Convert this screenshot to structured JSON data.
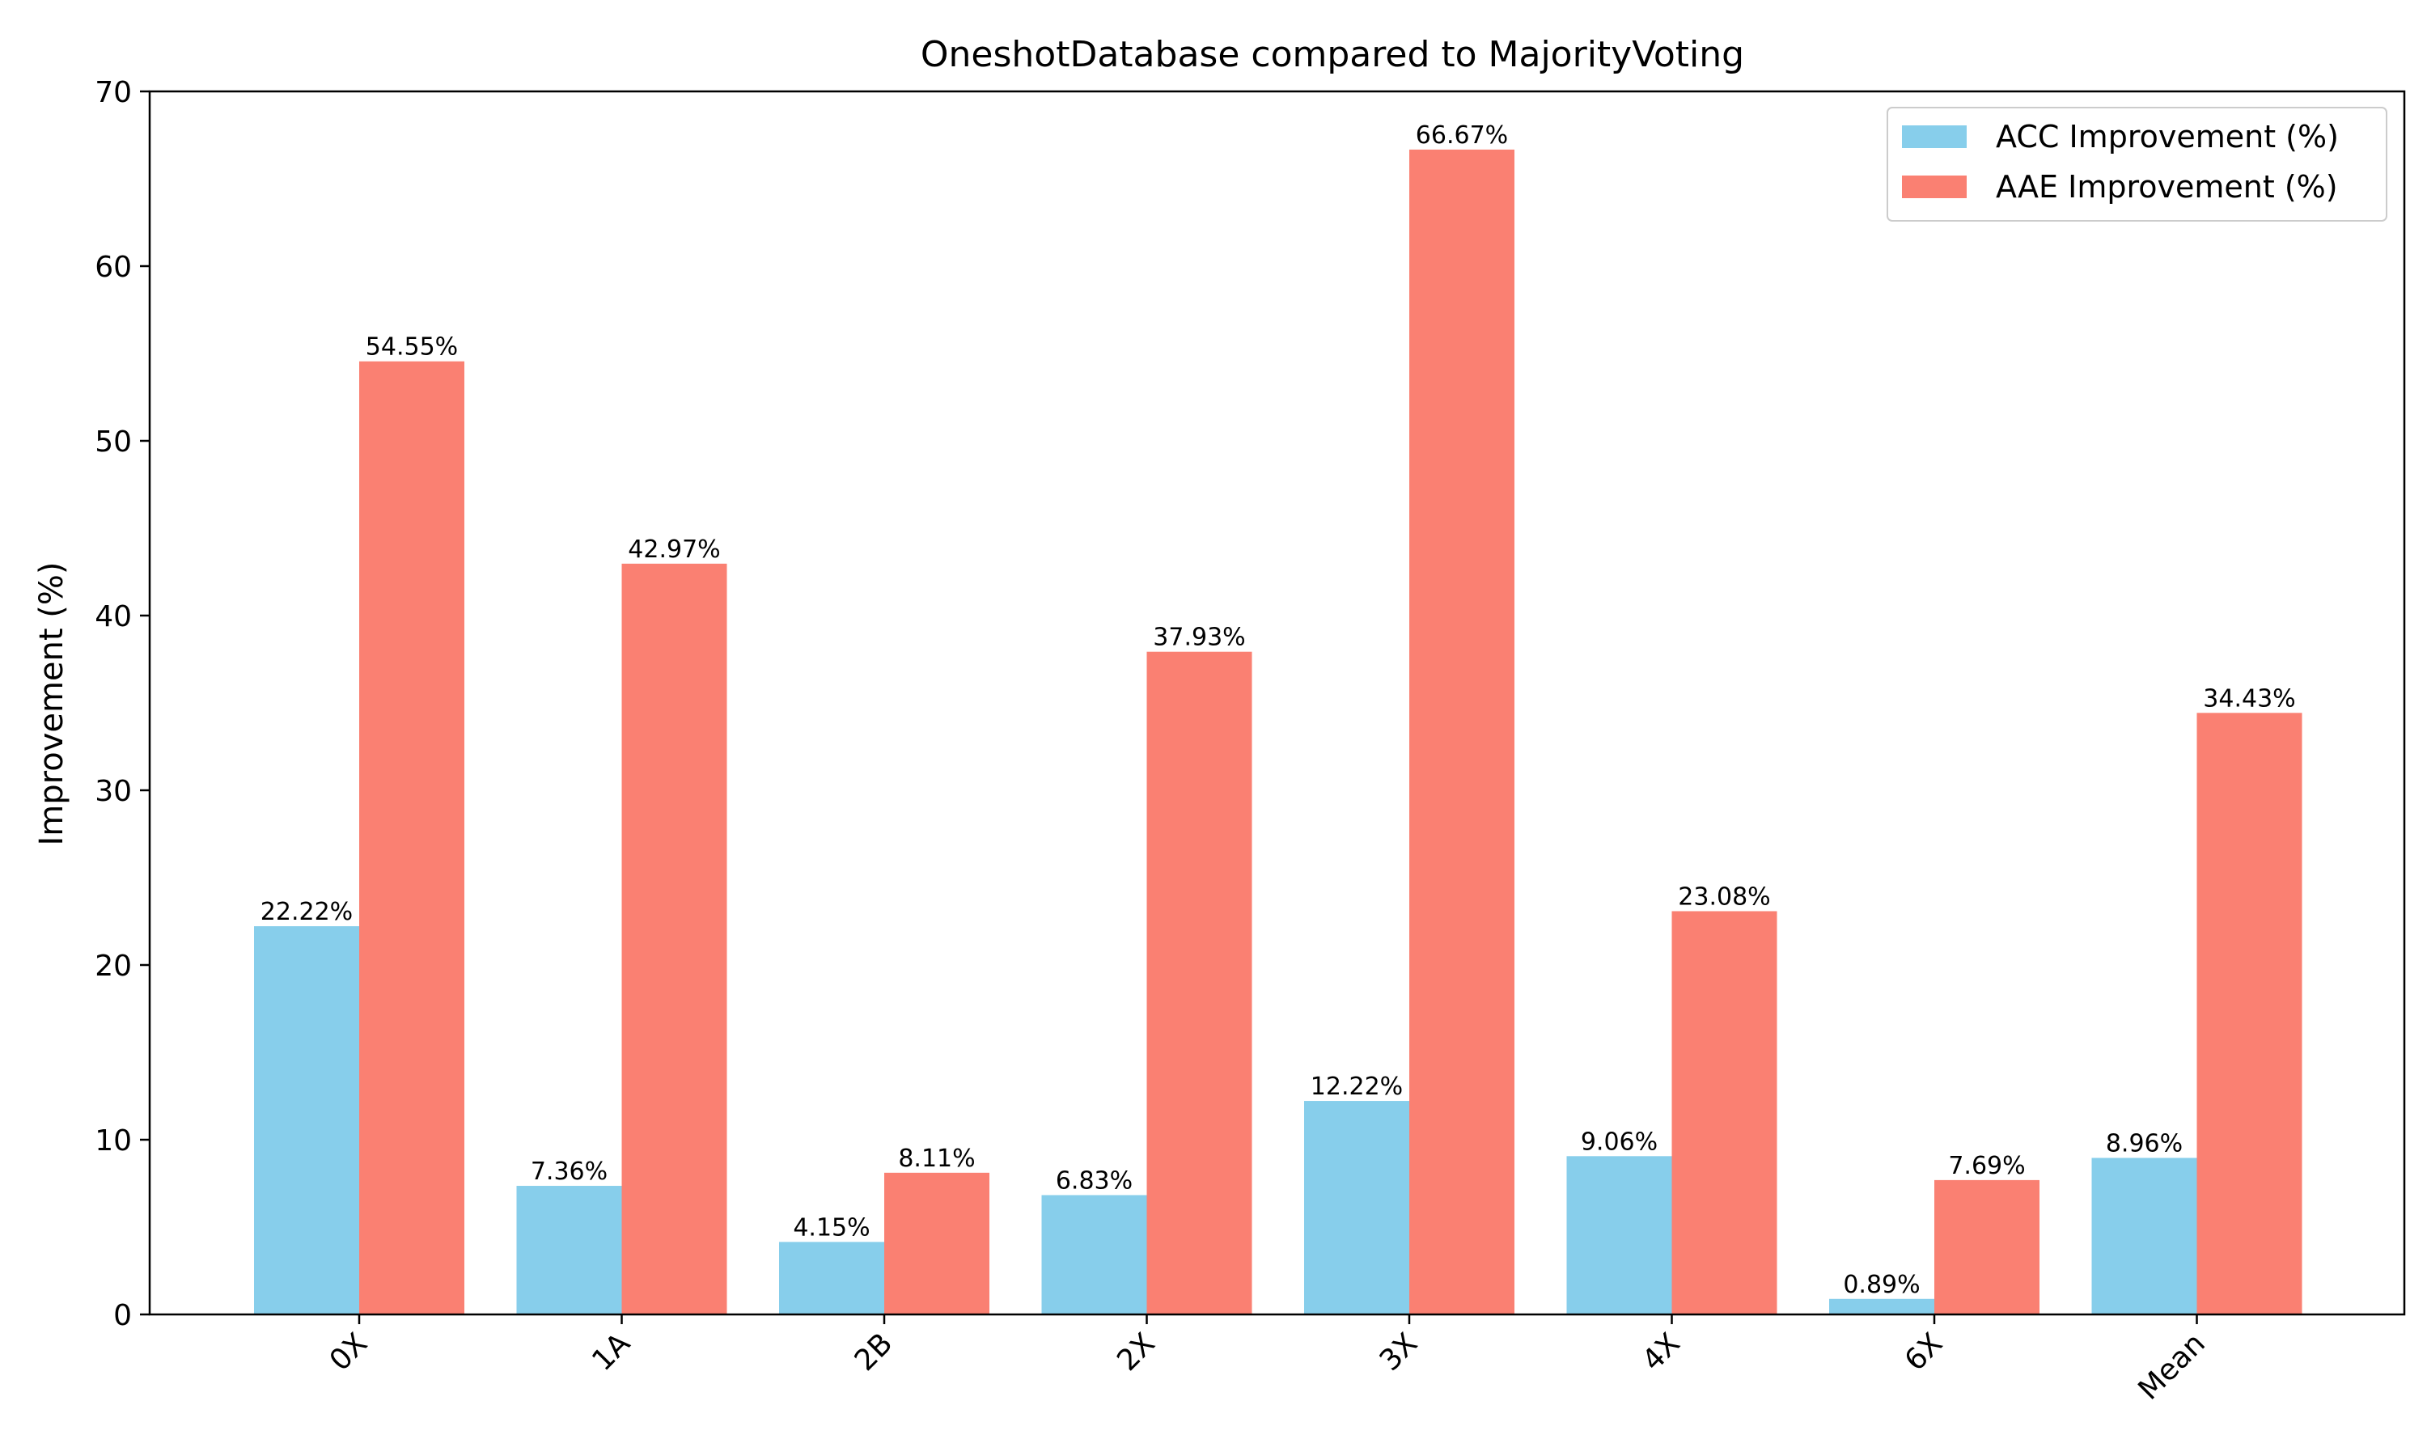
{
  "chart_data": {
    "type": "bar",
    "title": "OneshotDatabase compared to MajorityVoting",
    "xlabel": "",
    "ylabel": "Improvement (%)",
    "ylim": [
      0,
      70
    ],
    "yticks": [
      "0",
      "10",
      "20",
      "30",
      "40",
      "50",
      "60",
      "70"
    ],
    "categories": [
      "0X",
      "1A",
      "2B",
      "2X",
      "3X",
      "4X",
      "6X",
      "Mean"
    ],
    "series": [
      {
        "name": "ACC Improvement (%)",
        "color": "#87CEEB",
        "values": [
          22.22,
          7.36,
          4.15,
          6.83,
          12.22,
          9.06,
          0.89,
          8.96
        ],
        "labels": [
          "22.22%",
          "7.36%",
          "4.15%",
          "6.83%",
          "12.22%",
          "9.06%",
          "0.89%",
          "8.96%"
        ]
      },
      {
        "name": "AAE Improvement (%)",
        "color": "#FA8072",
        "values": [
          54.55,
          42.97,
          8.11,
          37.93,
          66.67,
          23.08,
          7.69,
          34.43
        ],
        "labels": [
          "54.55%",
          "42.97%",
          "8.11%",
          "37.93%",
          "66.67%",
          "23.08%",
          "7.69%",
          "34.43%"
        ]
      }
    ],
    "legend_position": "top-right",
    "grid": false
  }
}
